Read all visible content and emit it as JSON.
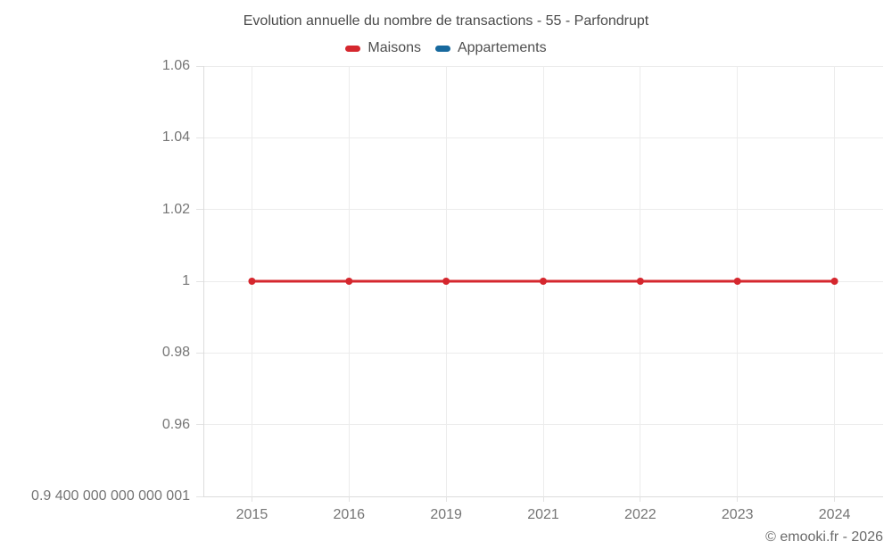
{
  "header": {
    "title": "Evolution annuelle du nombre de transactions - 55 - Parfondrupt"
  },
  "legend": {
    "items": [
      {
        "label": "Maisons",
        "color": "#d5272e"
      },
      {
        "label": "Appartements",
        "color": "#17699e"
      }
    ]
  },
  "footer": {
    "credit": "© emooki.fr - 2026"
  },
  "colors": {
    "background": "#ffffff",
    "grid": "#ececec",
    "axis": "#dcdcdc",
    "tick": "#e3e3e3",
    "title_text": "#4a4a4a",
    "legend_text": "#4f4f4f",
    "tick_label_text": "#757575",
    "footer_text": "#6b6b6b",
    "maisons_red": "#d5272e",
    "appartements_blue": "#17699e"
  },
  "chart_data": {
    "type": "line",
    "title": "Evolution annuelle du nombre de transactions - 55 - Parfondrupt",
    "categories": [
      "2015",
      "2016",
      "2019",
      "2021",
      "2022",
      "2023",
      "2024"
    ],
    "series": [
      {
        "name": "Maisons",
        "color": "#d5272e",
        "values": [
          1,
          1,
          1,
          1,
          1,
          1,
          1
        ],
        "visible": true
      },
      {
        "name": "Appartements",
        "color": "#17699e",
        "values": [],
        "visible": false
      }
    ],
    "xlabel": "",
    "ylabel": "",
    "ylim": [
      0.9400000000000001,
      1.06
    ],
    "yticks": [
      1.06,
      1.04,
      1.02,
      1,
      0.98,
      0.96,
      0.9400000000000001
    ],
    "ytick_labels": [
      "1.06",
      "1.04",
      "1.02",
      "1",
      "0.98",
      "0.96",
      "0.9 400 000 000 000 001"
    ],
    "grid": true,
    "legend_position": "top",
    "marker": "circle",
    "marker_radius": 4,
    "line_width": 3
  }
}
